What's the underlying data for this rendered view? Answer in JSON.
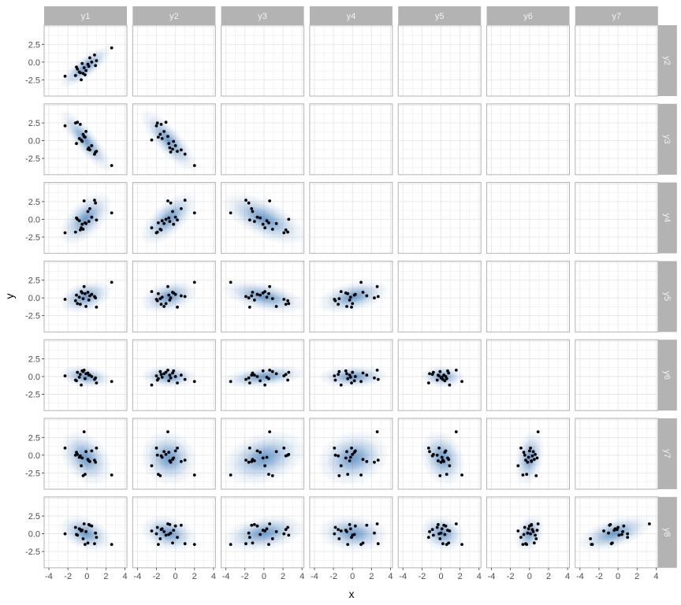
{
  "chart_data": {
    "type": "scatter",
    "layout": "facet-grid",
    "xlabel": "x",
    "ylabel": "y",
    "column_vars": [
      "y1",
      "y2",
      "y3",
      "y4",
      "y5",
      "y6",
      "y7"
    ],
    "row_vars": [
      "y2",
      "y3",
      "y4",
      "y5",
      "y6",
      "y7",
      "y8"
    ],
    "xlim": [
      -4.5,
      4.2
    ],
    "ylim": [
      -4.8,
      5.2
    ],
    "x_ticks": [
      -4,
      -2,
      0,
      2,
      4
    ],
    "y_ticks": [
      -2.5,
      0.0,
      2.5
    ],
    "y_tick_labels": [
      "-2.5",
      "0.0",
      "2.5"
    ],
    "grid": true,
    "density_overlay": true,
    "colors": {
      "strip_background": "#b3b3b3",
      "strip_text": "#f2f2f2",
      "panel_border": "#b3b3b3",
      "grid": "#e6e6e6",
      "point": "#000000",
      "density": "#2c6fb3"
    },
    "data": {
      "y1": [
        0.3,
        -0.5,
        -1.2,
        0.8,
        -0.1,
        1.0,
        2.6,
        -2.3,
        -0.8,
        -0.3,
        0.5,
        -1.0,
        -0.6,
        0.1,
        -0.4,
        -0.7,
        0.9,
        -1.1,
        0.2,
        -0.2
      ],
      "y2": [
        0.6,
        -0.2,
        -1.9,
        1.0,
        -1.2,
        0.2,
        2.0,
        -2.0,
        -1.4,
        -0.8,
        0.0,
        -1.0,
        -2.5,
        -0.3,
        -1.6,
        -1.5,
        -0.5,
        -0.7,
        -0.6,
        -1.8
      ],
      "y3": [
        -1.3,
        -0.1,
        2.5,
        -1.9,
        1.3,
        -1.5,
        -3.5,
        2.1,
        0.3,
        0.6,
        -0.7,
        2.6,
        0.1,
        -1.2,
        0.9,
        2.3,
        -1.6,
        -0.4,
        -1.0,
        0.5
      ],
      "y4": [
        1.5,
        -0.7,
        -1.8,
        2.7,
        -0.6,
        -0.1,
        0.9,
        -1.9,
        -0.2,
        2.6,
        0.3,
        0.0,
        -1.2,
        1.1,
        -1.4,
        -1.5,
        2.3,
        0.2,
        -0.3,
        -0.5
      ],
      "y5": [
        0.3,
        0.7,
        -0.4,
        0.2,
        -1.2,
        -1.3,
        2.2,
        -0.2,
        0.1,
        1.6,
        0.5,
        -0.8,
        0.9,
        0.8,
        -0.1,
        -0.9,
        0.0,
        0.4,
        -0.3,
        0.6
      ],
      "y6": [
        0.2,
        0.8,
        -0.5,
        -0.4,
        0.4,
        -0.9,
        -0.7,
        0.1,
        -0.1,
        0.9,
        0.0,
        0.6,
        -1.2,
        0.5,
        0.7,
        0.3,
        -0.2,
        -0.6,
        0.2,
        -0.3
      ],
      "y7": [
        -0.9,
        -0.4,
        0.0,
        -0.7,
        0.5,
        1.0,
        -2.8,
        1.0,
        -0.3,
        3.3,
        0.6,
        0.1,
        -1.5,
        -0.6,
        -2.9,
        -0.1,
        -1.0,
        0.4,
        -0.8,
        -2.7
      ],
      "y8": [
        1.2,
        0.5,
        0.9,
        -1.4,
        0.3,
        -0.5,
        -1.5,
        0.0,
        0.7,
        1.4,
        1.1,
        -0.2,
        0.4,
        -1.3,
        -0.7,
        0.6,
        0.1,
        -0.1,
        1.3,
        -1.5
      ]
    }
  }
}
